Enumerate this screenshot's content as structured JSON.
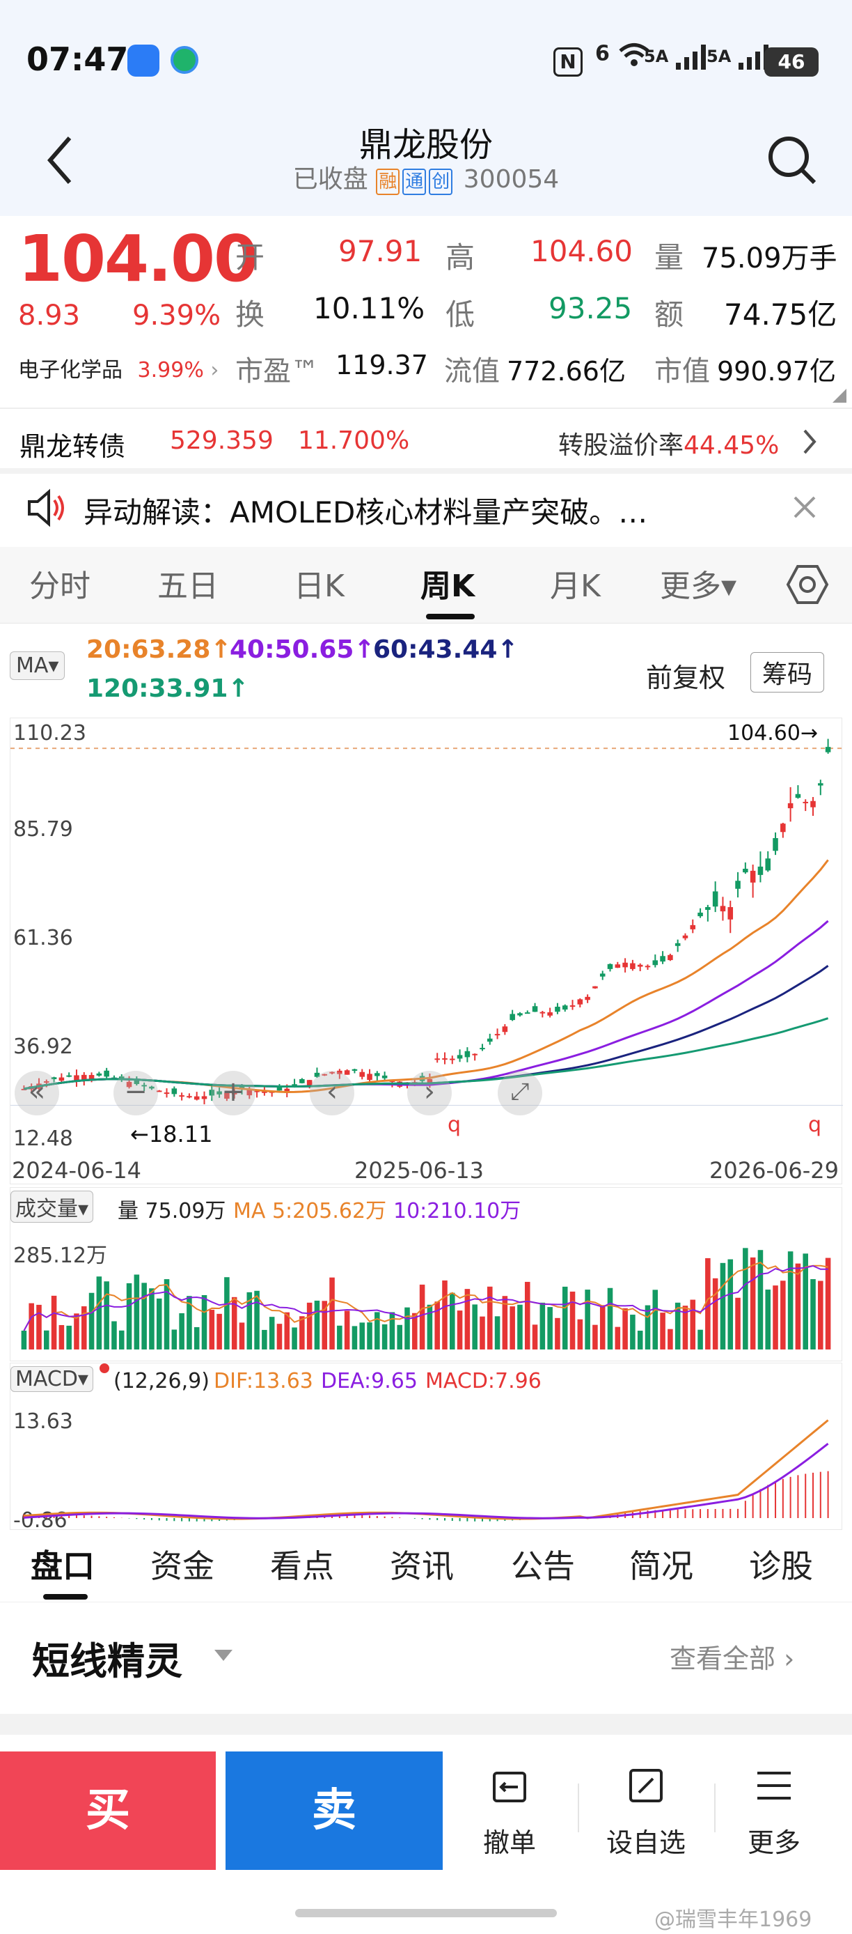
{
  "status": {
    "time": "07:47",
    "nfc": "N",
    "signal1": "6",
    "wifi": "5A",
    "signal2": "5A",
    "battery": "46"
  },
  "header": {
    "title": "鼎龙股份",
    "status": "已收盘",
    "chips": [
      "融",
      "通",
      "创"
    ],
    "code": "300054"
  },
  "quote": {
    "price": "104.00",
    "change": "8.93",
    "change_pct": "9.39%",
    "sector": "电子化学品",
    "sector_pct": "3.99%",
    "open_label": "开",
    "open": "97.91",
    "high_label": "高",
    "high": "104.60",
    "vol_label": "量",
    "vol": "75.09万手",
    "turn_label": "换",
    "turn": "10.11%",
    "low_label": "低",
    "low": "93.25",
    "amt_label": "额",
    "amt": "74.75亿",
    "pe_label": "市盈™",
    "pe": "119.37",
    "float_label": "流值",
    "float": "772.66亿",
    "mcap_label": "市值",
    "mcap": "990.97亿"
  },
  "bond": {
    "name": "鼎龙转债",
    "price": "529.359",
    "pct": "11.700%",
    "premium_label": "转股溢价率",
    "premium": "44.45%"
  },
  "news": {
    "text": "异动解读：AMOLED核心材料量产突破。…"
  },
  "tabs": [
    "分时",
    "五日",
    "日K",
    "周K",
    "月K",
    "更多▾"
  ],
  "ma": {
    "label": "MA▾",
    "ma20": "20:63.28↑",
    "ma40": "40:50.65↑",
    "ma60": "60:43.44↑",
    "ma120": "120:33.91↑",
    "adjust": "前复权",
    "chips_btn": "筹码"
  },
  "kline": {
    "y_labels": [
      "110.23",
      "85.79",
      "61.36",
      "36.92",
      "12.48"
    ],
    "max_label": "104.60→",
    "min_label": "←18.11",
    "dates": [
      "2024-06-14",
      "2025-06-13",
      "2026-06-29"
    ],
    "marker": "q"
  },
  "volume": {
    "label": "成交量▾",
    "vol": "量 75.09万",
    "ma5": "MA 5:205.62万",
    "ma10": "10:210.10万",
    "top": "285.12万"
  },
  "macd": {
    "label": "MACD▾",
    "params": "(12,26,9)",
    "dif": "DIF:13.63",
    "dea": "DEA:9.65",
    "macd": "MACD:7.96",
    "top": "13.63",
    "bottom": "-0.86"
  },
  "bottom_tabs": [
    "盘口",
    "资金",
    "看点",
    "资讯",
    "公告",
    "简况",
    "诊股"
  ],
  "spirit": {
    "title": "短线精灵",
    "view_all": "查看全部"
  },
  "actions": {
    "buy": "买",
    "sell": "卖",
    "cancel": "撤单",
    "watch": "设自选",
    "more": "更多"
  },
  "watermark": "@瑞雪丰年1969",
  "colors": {
    "up": "#e63535",
    "down": "#139a63",
    "ma20": "#e8832a",
    "ma40": "#8a1ee0",
    "ma60": "#1a237e",
    "ma120": "#159a72",
    "buy_bg": "#f14556",
    "sell_bg": "#1a78e0"
  }
}
